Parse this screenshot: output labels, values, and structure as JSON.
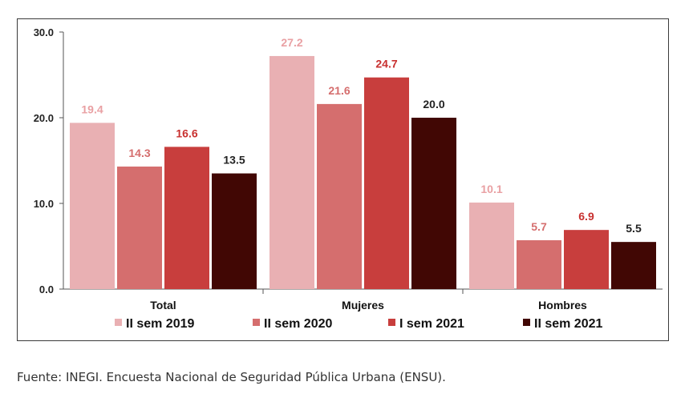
{
  "chart_data": {
    "type": "bar",
    "categories": [
      "Total",
      "Mujeres",
      "Hombres"
    ],
    "series": [
      {
        "name": "II sem 2019",
        "values": [
          19.4,
          27.2,
          10.1
        ],
        "color": "#e9b0b3"
      },
      {
        "name": "II sem 2020",
        "values": [
          14.3,
          21.6,
          5.7
        ],
        "color": "#d56e6e"
      },
      {
        "name": "I sem 2021",
        "values": [
          16.6,
          24.7,
          6.9
        ],
        "color": "#c83e3d"
      },
      {
        "name": "II sem 2021",
        "values": [
          13.5,
          20.0,
          5.5
        ],
        "color": "#410704"
      }
    ],
    "data_label_colors": [
      "#e9a0a3",
      "#d56e6e",
      "#c8302f",
      "#222222"
    ],
    "yticks": [
      "0.0",
      "10.0",
      "20.0",
      "30.0"
    ],
    "ylim": [
      0,
      30
    ],
    "legend_position": "bottom",
    "grid": false
  },
  "source": "Fuente: INEGI. Encuesta Nacional de Seguridad Pública Urbana (ENSU)."
}
